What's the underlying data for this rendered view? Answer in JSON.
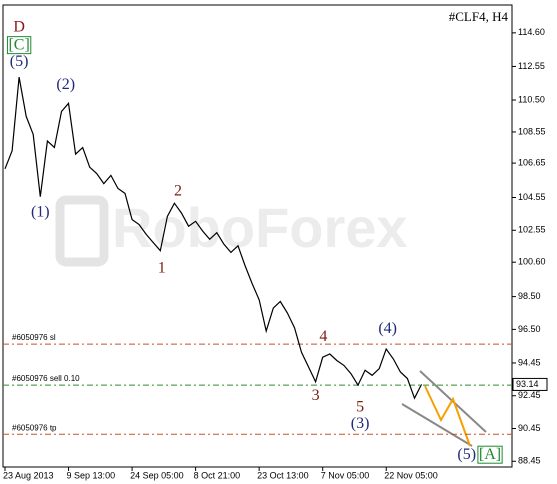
{
  "chart_data": {
    "type": "line",
    "title": "#CLF4, H4",
    "watermark": "RoboForex",
    "categories": [
      "23 Aug 2013",
      null,
      null,
      null,
      null,
      null,
      null,
      null,
      null,
      "9 Sep 13:00",
      null,
      null,
      null,
      null,
      null,
      null,
      null,
      null,
      "24 Sep 05:00",
      null,
      null,
      null,
      null,
      null,
      null,
      null,
      null,
      "8 Oct 21:00",
      null,
      null,
      null,
      null,
      null,
      null,
      null,
      null,
      "23 Oct 13:00",
      null,
      null,
      null,
      null,
      null,
      null,
      null,
      null,
      "7 Nov 05:00",
      null,
      null,
      null,
      null,
      null,
      null,
      null,
      null,
      "22 Nov 05:00",
      null,
      null,
      null,
      null,
      null
    ],
    "series": [
      {
        "color": "#000000",
        "values": [
          106.3,
          107.4,
          111.9,
          109.5,
          108.4,
          104.6,
          108.0,
          107.6,
          109.8,
          110.3,
          107.2,
          107.6,
          106.4,
          106.0,
          105.4,
          105.9,
          105.1,
          104.8,
          103.2,
          102.9,
          102.3,
          101.8,
          101.3,
          103.4,
          104.2,
          103.6,
          102.8,
          103.1,
          102.5,
          102.0,
          102.4,
          101.7,
          101.2,
          101.6,
          100.4,
          99.3,
          98.3,
          96.4,
          97.8,
          98.2,
          97.5,
          96.6,
          95.1,
          94.2,
          93.3,
          94.8,
          95.0,
          94.6,
          94.3,
          93.8,
          93.1,
          94.0,
          93.7,
          94.1,
          95.3,
          94.7,
          93.9,
          93.5,
          92.3,
          93.14
        ]
      }
    ],
    "ylim": [
      88.1,
      116.3
    ],
    "yticks": [
      {
        "value": 114.6,
        "label": "114.60"
      },
      112.55,
      {
        "value": 110.5,
        "label": "110.50"
      },
      108.55,
      106.65,
      104.55,
      102.55,
      {
        "value": 100.6,
        "label": "100.60"
      },
      {
        "value": 98.5,
        "label": "98.50"
      },
      {
        "value": 96.5,
        "label": "96.50"
      },
      94.45,
      92.45,
      90.45,
      88.45
    ],
    "levels": [
      {
        "label": "#6050976 sl",
        "value": 95.6,
        "color": "#c8502a"
      },
      {
        "label": "#6050976 sell 0.10",
        "value": 93.1,
        "color": "#2e8b2e"
      },
      {
        "label": "#6050976 tp",
        "value": 90.1,
        "color": "#c8502a"
      }
    ],
    "annotations": [
      {
        "text": "D",
        "x": 2,
        "y": 114.9,
        "color": "#8b1a1a"
      },
      {
        "text": "[C]",
        "x": 2,
        "y": 113.8,
        "color": "#1f8b2f",
        "box": true
      },
      {
        "text": "(5)",
        "x": 2,
        "y": 112.8,
        "color": "#1f2a7a"
      },
      {
        "text": "(1)",
        "x": 5,
        "y": 103.6,
        "color": "#1f2a7a"
      },
      {
        "text": "(2)",
        "x": 8.6,
        "y": 111.4,
        "color": "#1f2a7a"
      },
      {
        "text": "1",
        "x": 22.2,
        "y": 100.2,
        "color": "#7a1f10"
      },
      {
        "text": "2",
        "x": 24.5,
        "y": 104.9,
        "color": "#7a1f10"
      },
      {
        "text": "3",
        "x": 44,
        "y": 92.4,
        "color": "#7a1f10"
      },
      {
        "text": "4",
        "x": 45.1,
        "y": 96.0,
        "color": "#7a1f10"
      },
      {
        "text": "5",
        "x": 50.3,
        "y": 91.7,
        "color": "#7a1f10"
      },
      {
        "text": "(3)",
        "x": 50.3,
        "y": 90.7,
        "color": "#1f2a7a"
      },
      {
        "text": "(4)",
        "x": 54.2,
        "y": 96.5,
        "color": "#1f2a7a"
      },
      {
        "text": "(5)",
        "x": 65.4,
        "y": 88.8,
        "color": "#1f2a7a"
      },
      {
        "text": "[A]",
        "x": 68.7,
        "y": 88.8,
        "color": "#1f8b2f",
        "box": true
      }
    ]
  }
}
